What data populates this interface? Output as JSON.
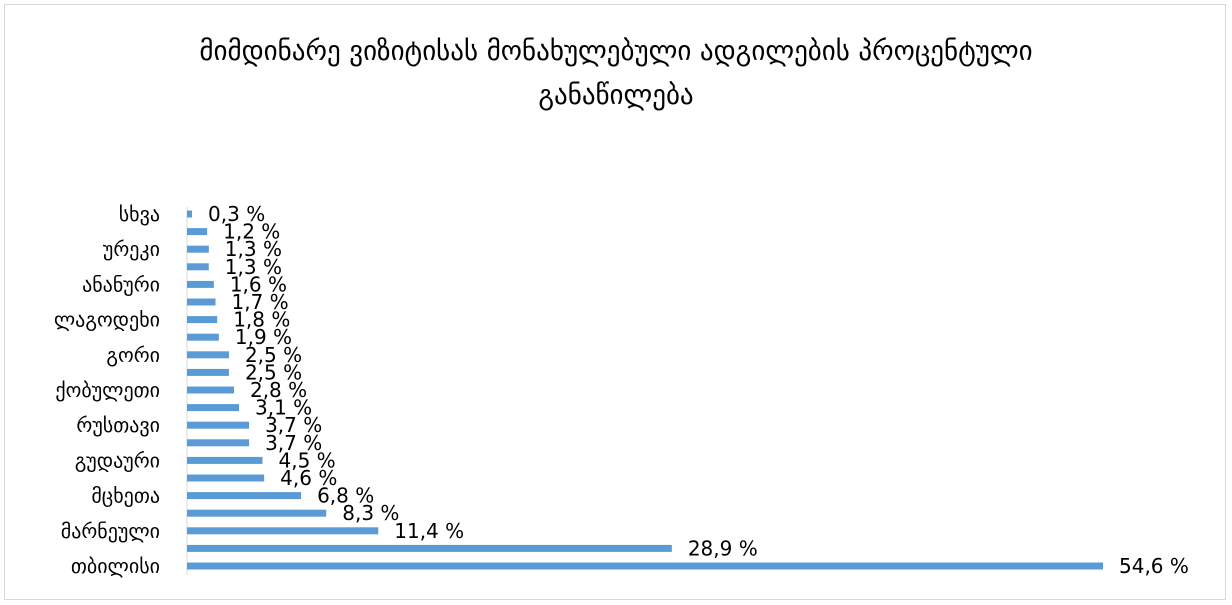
{
  "chart_data": {
    "type": "bar",
    "orientation": "horizontal",
    "title_line1": "მიმდინარე ვიზიტისას მონახულებული ადგილების პროცენტული",
    "title_line2": "განაწილება",
    "categories": [
      "თბილისი",
      "",
      "მარნეული",
      "",
      "მცხეთა",
      "",
      "გუდაური",
      "",
      "რუსთავი",
      "",
      "ქობულეთი",
      "",
      "გორი",
      "",
      "ლაგოდეხი",
      "",
      "ანანური",
      "",
      "ურეკი",
      "",
      "სხვა"
    ],
    "values": [
      54.6,
      28.9,
      11.4,
      8.3,
      6.8,
      4.6,
      4.5,
      3.7,
      3.7,
      3.1,
      2.8,
      2.5,
      2.5,
      1.9,
      1.8,
      1.7,
      1.6,
      1.3,
      1.3,
      1.2,
      0.3
    ],
    "data_labels": [
      "54,6 %",
      "28,9 %",
      "11,4 %",
      "8,3 %",
      "6,8 %",
      "4,6 %",
      "4,5 %",
      "3,7 %",
      "3,7 %",
      "3,1 %",
      "2,8 %",
      "2,5 %",
      "2,5 %",
      "1,9 %",
      "1,8 %",
      "1,7 %",
      "1,6 %",
      "1,3 %",
      "1,3 %",
      "1,2 %",
      "0,3 %"
    ],
    "bar_color": "#5b9bd5",
    "grid": false,
    "legend": "none"
  }
}
